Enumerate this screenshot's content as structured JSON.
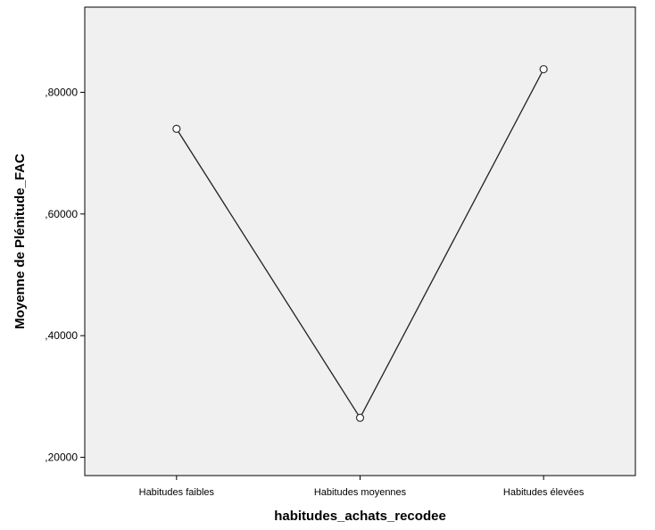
{
  "chart_data": {
    "type": "line",
    "title": "",
    "xlabel": "habitudes_achats_recodee",
    "ylabel": "Moyenne de Plénitude_FAC",
    "categories": [
      "Habitudes faibles",
      "Habitudes moyennes",
      "Habitudes élevées"
    ],
    "series": [
      {
        "values": [
          0.74,
          0.265,
          0.838
        ]
      }
    ],
    "ylim": [
      0.17,
      0.94
    ],
    "y_ticks": [
      0.2,
      0.4,
      0.6,
      0.8
    ],
    "y_tick_labels": [
      ",20000",
      ",40000",
      ",60000",
      ",80000"
    ],
    "grid": false,
    "legend": "none",
    "colors": {
      "plot_background": "#f0f0f0",
      "line": "#222222",
      "marker_stroke": "#333333",
      "marker_fill": "#ffffff",
      "axis": "#000000",
      "text": "#000000"
    },
    "marker": "open-circle"
  }
}
